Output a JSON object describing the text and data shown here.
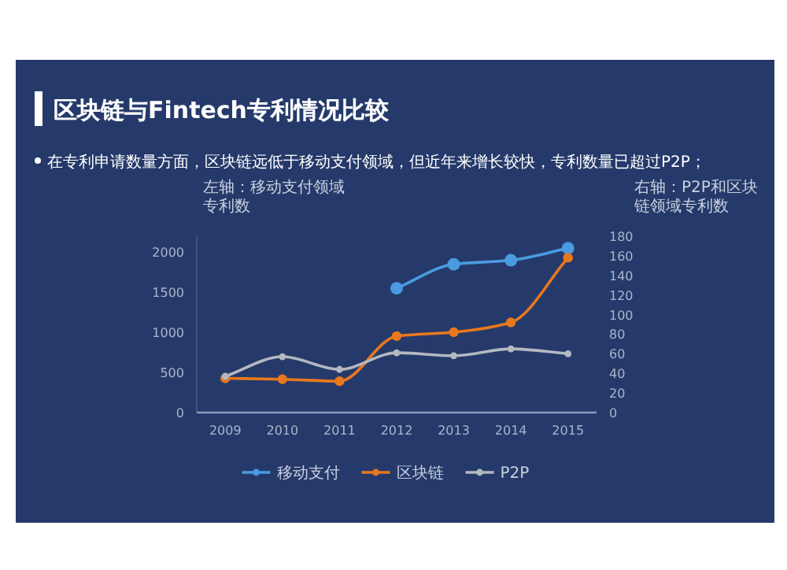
{
  "chart_data": {
    "type": "line",
    "title": "区块链与Fintech专利情况比较",
    "subtitle": "在专利申请数量方面，区块链远低于移动支付领域，但近年来增长较快，专利数量已超过P2P；",
    "categories": [
      "2009",
      "2010",
      "2011",
      "2012",
      "2013",
      "2014",
      "2015"
    ],
    "series": [
      {
        "name": "移动支付",
        "color": "#4a9be0",
        "values": [
          null,
          null,
          null,
          1550,
          1850,
          1900,
          2050
        ]
      },
      {
        "name": "区块链",
        "color": "#e8781e",
        "axis": "y2",
        "values": [
          35,
          34,
          32,
          78,
          82,
          92,
          158
        ]
      },
      {
        "name": "P2P",
        "color": "#b4b8c0",
        "axis": "y2",
        "values": [
          37,
          57,
          44,
          61,
          58,
          65,
          60
        ]
      }
    ],
    "ylim": [
      0,
      2200
    ],
    "yticks": [
      0,
      500,
      1000,
      1500,
      2000
    ],
    "y2lim": [
      0,
      180
    ],
    "y2ticks": [
      0,
      20,
      40,
      60,
      80,
      100,
      120,
      140,
      160,
      180
    ],
    "annotations": [
      "左轴：移动支付领域专利数",
      "右轴：P2P和区块链领域专利数"
    ],
    "legend": "bottom",
    "marker": "circle"
  }
}
